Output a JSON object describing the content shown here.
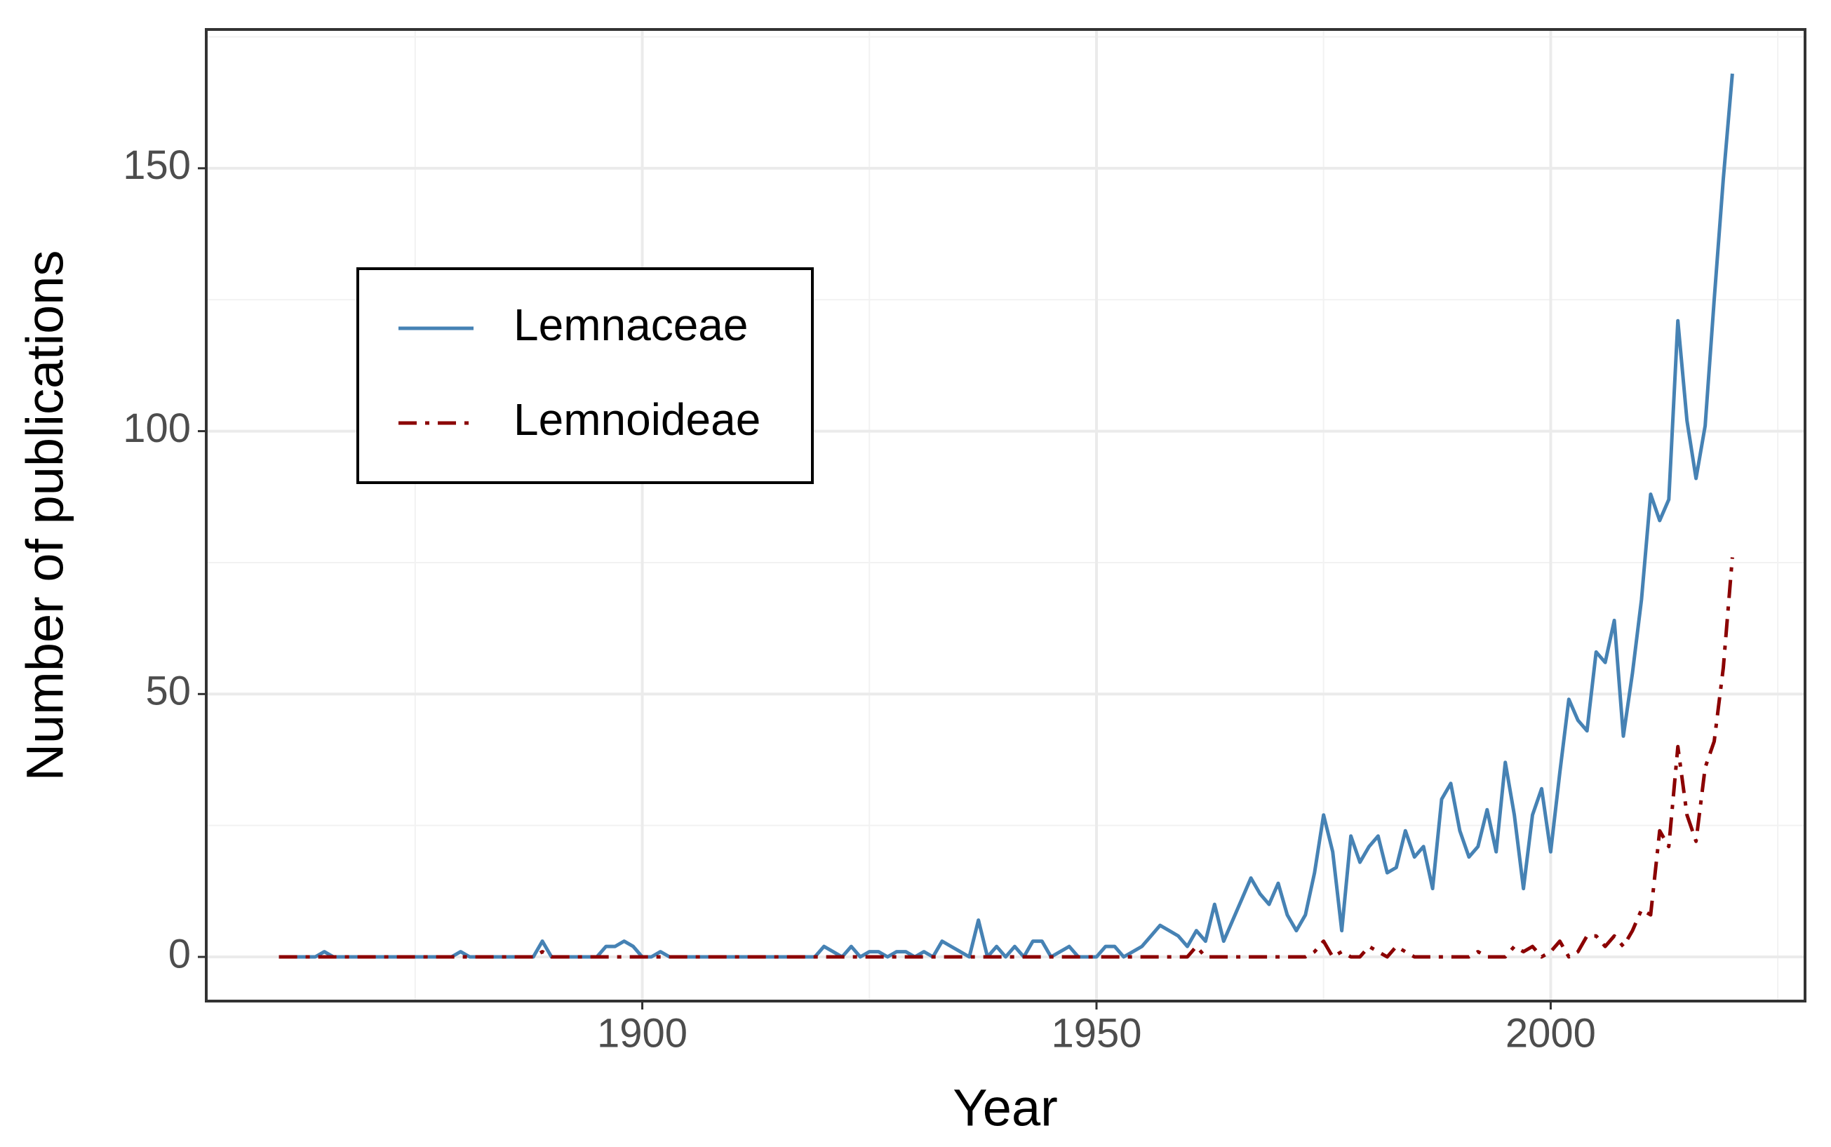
{
  "chart_data": {
    "type": "line",
    "x_label": "Year",
    "y_label": "Number of publications",
    "x": [
      1860,
      1861,
      1862,
      1863,
      1864,
      1865,
      1866,
      1867,
      1868,
      1869,
      1870,
      1871,
      1872,
      1873,
      1874,
      1875,
      1876,
      1877,
      1878,
      1879,
      1880,
      1881,
      1882,
      1883,
      1884,
      1885,
      1886,
      1887,
      1888,
      1889,
      1890,
      1891,
      1892,
      1893,
      1894,
      1895,
      1896,
      1897,
      1898,
      1899,
      1900,
      1901,
      1902,
      1903,
      1904,
      1905,
      1906,
      1907,
      1908,
      1909,
      1910,
      1911,
      1912,
      1913,
      1914,
      1915,
      1916,
      1917,
      1918,
      1919,
      1920,
      1921,
      1922,
      1923,
      1924,
      1925,
      1926,
      1927,
      1928,
      1929,
      1930,
      1931,
      1932,
      1933,
      1934,
      1935,
      1936,
      1937,
      1938,
      1939,
      1940,
      1941,
      1942,
      1943,
      1944,
      1945,
      1946,
      1947,
      1948,
      1949,
      1950,
      1951,
      1952,
      1953,
      1954,
      1955,
      1956,
      1957,
      1958,
      1959,
      1960,
      1961,
      1962,
      1963,
      1964,
      1965,
      1966,
      1967,
      1968,
      1969,
      1970,
      1971,
      1972,
      1973,
      1974,
      1975,
      1976,
      1977,
      1978,
      1979,
      1980,
      1981,
      1982,
      1983,
      1984,
      1985,
      1986,
      1987,
      1988,
      1989,
      1990,
      1991,
      1992,
      1993,
      1994,
      1995,
      1996,
      1997,
      1998,
      1999,
      2000,
      2001,
      2002,
      2003,
      2004,
      2005,
      2006,
      2007,
      2008,
      2009,
      2010,
      2011,
      2012,
      2013,
      2014,
      2015,
      2016,
      2017,
      2018,
      2019,
      2020
    ],
    "series": [
      {
        "name": "Lemnaceae",
        "color": "#4682b4",
        "dash": "solid",
        "values": [
          0,
          0,
          0,
          0,
          0,
          1,
          0,
          0,
          0,
          0,
          0,
          0,
          0,
          0,
          0,
          0,
          0,
          0,
          0,
          0,
          1,
          0,
          0,
          0,
          0,
          0,
          0,
          0,
          0,
          3,
          0,
          0,
          0,
          0,
          0,
          0,
          2,
          2,
          3,
          2,
          0,
          0,
          1,
          0,
          0,
          0,
          0,
          0,
          0,
          0,
          0,
          0,
          0,
          0,
          0,
          0,
          0,
          0,
          0,
          0,
          2,
          1,
          0,
          2,
          0,
          1,
          1,
          0,
          1,
          1,
          0,
          1,
          0,
          3,
          2,
          1,
          0,
          7,
          0,
          2,
          0,
          2,
          0,
          3,
          3,
          0,
          1,
          2,
          0,
          0,
          0,
          2,
          2,
          0,
          1,
          2,
          4,
          6,
          5,
          4,
          2,
          5,
          3,
          10,
          3,
          7,
          11,
          15,
          12,
          10,
          14,
          8,
          5,
          8,
          16,
          27,
          20,
          5,
          23,
          18,
          21,
          23,
          16,
          17,
          24,
          19,
          21,
          13,
          30,
          33,
          24,
          19,
          21,
          28,
          20,
          37,
          27,
          13,
          27,
          32,
          20,
          35,
          49,
          45,
          43,
          58,
          56,
          64,
          42,
          54,
          68,
          88,
          83,
          87,
          121,
          102,
          91,
          101,
          125,
          148,
          168
        ]
      },
      {
        "name": "Lemnoideae",
        "color": "#8b0000",
        "dash": "dashdot",
        "values": [
          0,
          0,
          0,
          0,
          0,
          0,
          0,
          0,
          0,
          0,
          0,
          0,
          0,
          0,
          0,
          0,
          0,
          0,
          0,
          0,
          0,
          0,
          0,
          0,
          0,
          0,
          0,
          0,
          0,
          1,
          0,
          0,
          0,
          0,
          0,
          0,
          0,
          0,
          0,
          0,
          0,
          0,
          0,
          0,
          0,
          0,
          0,
          0,
          0,
          0,
          0,
          0,
          0,
          0,
          0,
          0,
          0,
          0,
          0,
          0,
          0,
          0,
          0,
          0,
          0,
          0,
          0,
          0,
          0,
          0,
          0,
          0,
          0,
          0,
          0,
          0,
          0,
          0,
          0,
          0,
          0,
          0,
          0,
          0,
          0,
          0,
          0,
          0,
          0,
          0,
          0,
          0,
          0,
          0,
          0,
          0,
          0,
          0,
          0,
          0,
          0,
          2,
          0,
          0,
          0,
          0,
          0,
          0,
          0,
          0,
          0,
          0,
          0,
          0,
          1,
          3,
          0,
          1,
          0,
          0,
          2,
          1,
          0,
          2,
          1,
          0,
          0,
          0,
          0,
          0,
          0,
          0,
          1,
          0,
          0,
          0,
          2,
          1,
          2,
          0,
          1,
          3,
          0,
          1,
          4,
          4,
          2,
          4,
          2,
          5,
          9,
          8,
          24,
          21,
          40,
          27,
          22,
          36,
          41,
          55,
          76
        ]
      }
    ],
    "xlim": [
      1852,
      2028
    ],
    "ylim": [
      -8.4,
      176.4
    ],
    "xticks": [
      1900,
      1950,
      2000
    ],
    "yticks": [
      0,
      50,
      100,
      150
    ],
    "grid": true,
    "legend": "left"
  }
}
